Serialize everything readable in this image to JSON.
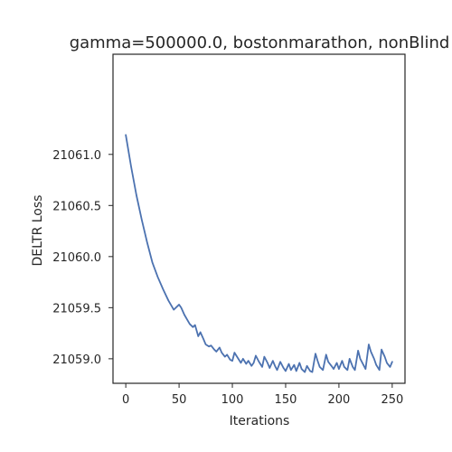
{
  "chart_data": {
    "type": "line",
    "title": "gamma=500000.0, bostonmarathon, nonBlind",
    "xlabel": "Iterations",
    "ylabel": "DELTR Loss",
    "xlim": [
      -12,
      262
    ],
    "ylim": [
      21058.76,
      21061.98
    ],
    "x_ticks": [
      0,
      50,
      100,
      150,
      200,
      250
    ],
    "y_ticks": [
      21059.0,
      21059.5,
      21060.0,
      21060.5,
      21061.0
    ],
    "x_tick_labels": [
      "0",
      "50",
      "100",
      "150",
      "200",
      "250"
    ],
    "y_tick_labels": [
      "21059.0",
      "21059.5",
      "21060.0",
      "21060.5",
      "21061.0"
    ],
    "grid": false,
    "series": [
      {
        "color": "#4c72b0",
        "x": [
          0,
          5,
          10,
          15,
          20,
          25,
          30,
          35,
          40,
          45,
          50,
          52,
          55,
          60,
          63,
          65,
          68,
          70,
          73,
          75,
          78,
          80,
          83,
          85,
          88,
          90,
          93,
          95,
          98,
          100,
          102,
          105,
          108,
          110,
          113,
          115,
          118,
          120,
          122,
          125,
          128,
          130,
          133,
          135,
          138,
          140,
          142,
          145,
          148,
          150,
          153,
          155,
          158,
          160,
          163,
          165,
          168,
          170,
          173,
          175,
          178,
          180,
          182,
          185,
          188,
          190,
          193,
          195,
          198,
          200,
          203,
          205,
          208,
          210,
          213,
          215,
          218,
          220,
          223,
          225,
          228,
          230,
          233,
          235,
          238,
          240,
          243,
          245,
          248,
          250
        ],
        "y": [
          21061.19,
          21060.88,
          21060.6,
          21060.36,
          21060.14,
          21059.94,
          21059.8,
          21059.68,
          21059.57,
          21059.48,
          21059.53,
          21059.5,
          21059.43,
          21059.34,
          21059.31,
          21059.33,
          21059.22,
          21059.26,
          21059.19,
          21059.14,
          21059.12,
          21059.13,
          21059.09,
          21059.07,
          21059.11,
          21059.06,
          21059.02,
          21059.04,
          21058.99,
          21058.98,
          21059.06,
          21059.01,
          21058.96,
          21059.0,
          21058.95,
          21058.98,
          21058.93,
          21058.96,
          21059.03,
          21058.97,
          21058.92,
          21059.02,
          21058.96,
          21058.91,
          21058.98,
          21058.93,
          21058.89,
          21058.97,
          21058.91,
          21058.88,
          21058.95,
          21058.89,
          21058.94,
          21058.88,
          21058.96,
          21058.9,
          21058.87,
          21058.93,
          21058.88,
          21058.87,
          21059.05,
          21058.98,
          21058.92,
          21058.89,
          21059.04,
          21058.97,
          21058.93,
          21058.9,
          21058.96,
          21058.9,
          21058.98,
          21058.92,
          21058.89,
          21059.0,
          21058.92,
          21058.89,
          21059.08,
          21059.0,
          21058.94,
          21058.9,
          21059.14,
          21059.07,
          21059.0,
          21058.94,
          21058.89,
          21059.09,
          21059.02,
          21058.96,
          21058.92,
          21058.97
        ]
      }
    ]
  }
}
